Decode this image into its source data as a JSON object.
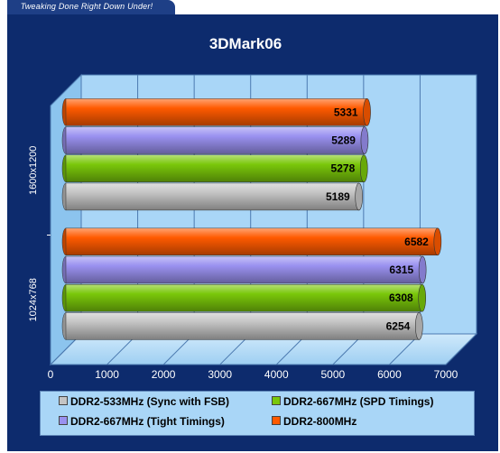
{
  "banner": {
    "text": "Tweaking Done Right Down Under!"
  },
  "chart_data": {
    "type": "bar",
    "orientation": "horizontal",
    "title": "3DMark06",
    "categories": [
      "1600x1200",
      "1024x768"
    ],
    "series": [
      {
        "name": "DDR2-800MHz",
        "color": "#ff5a00",
        "values": [
          5331,
          6582
        ]
      },
      {
        "name": "DDR2-667MHz (Tight Timings)",
        "color": "#9a91f0",
        "values": [
          5289,
          6315
        ]
      },
      {
        "name": "DDR2-667MHz (SPD Timings)",
        "color": "#7ac70a",
        "values": [
          5278,
          6308
        ]
      },
      {
        "name": "DDR2-533MHz (Sync with FSB)",
        "color": "#c4c4c4",
        "values": [
          5189,
          6254
        ]
      }
    ],
    "xlim": [
      0,
      7000
    ],
    "xticks": [
      0,
      1000,
      2000,
      3000,
      4000,
      5000,
      6000,
      7000
    ],
    "grid": true,
    "legend_position": "bottom"
  },
  "legend": {
    "items": [
      {
        "label": "DDR2-533MHz (Sync with FSB)",
        "color": "#c4c4c4"
      },
      {
        "label": "DDR2-667MHz (SPD Timings)",
        "color": "#7ac70a"
      },
      {
        "label": "DDR2-667MHz (Tight Timings)",
        "color": "#9a91f0"
      },
      {
        "label": "DDR2-800MHz",
        "color": "#ff5a00"
      }
    ]
  }
}
